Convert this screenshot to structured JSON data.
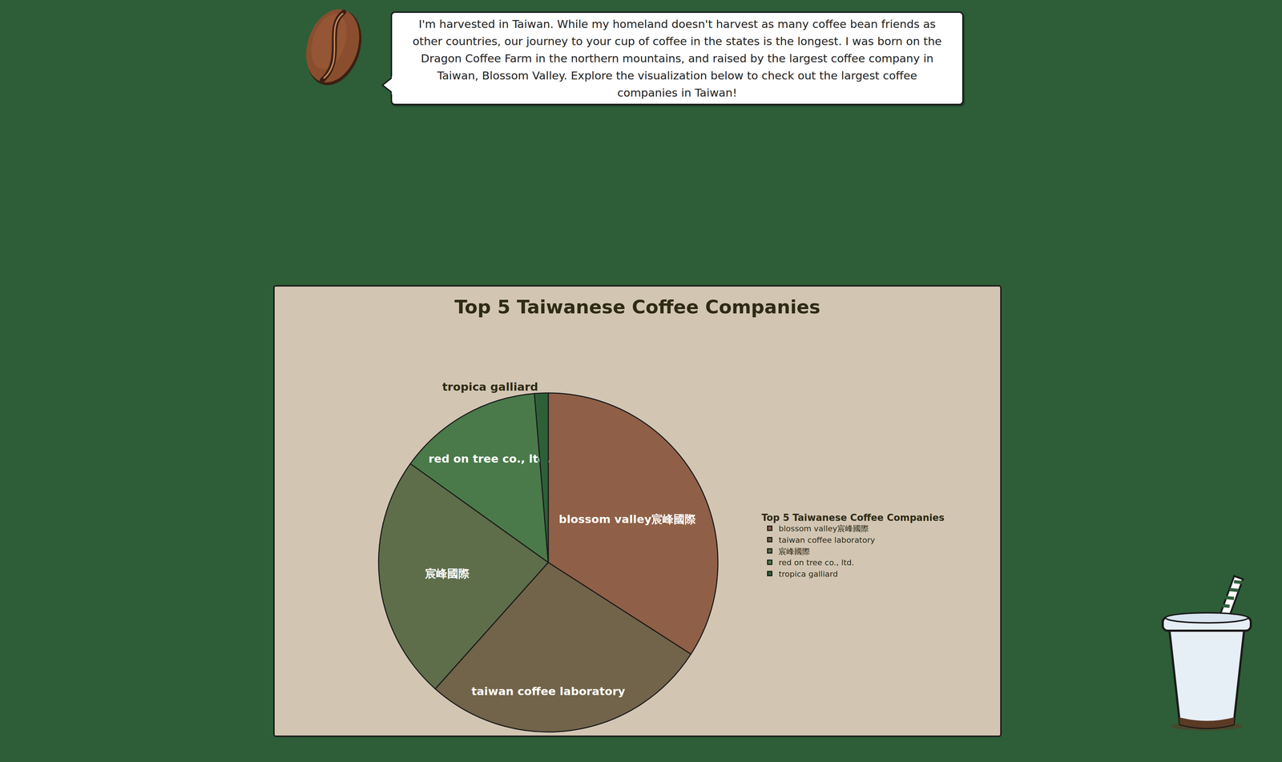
{
  "speech": "I'm harvested in Taiwan. While my homeland doesn't harvest as many coffee bean friends as other countries, our journey to your cup of coffee in the states is the longest. I was born on the Dragon Coffee Farm in the northern mountains, and raised by the largest coffee company in Taiwan, Blossom Valley. Explore the visualization below to check out the largest coffee companies in Taiwan!",
  "chart_data": {
    "type": "pie",
    "title": "Top 5 Taiwanese Coffee Companies",
    "legend_title": "Top 5 Taiwanese Coffee Companies",
    "categories": [
      "blossom valley宸峰國際",
      "taiwan coffee laboratory",
      "宸峰國際",
      "red on tree co., ltd.",
      "tropica galliard"
    ],
    "values": [
      34.1,
      27.5,
      23.3,
      13.8,
      1.3
    ],
    "colors": [
      "#8f6047",
      "#72644a",
      "#5e6e4a",
      "#4a7a4a",
      "#2e6038"
    ],
    "legend": "right"
  }
}
